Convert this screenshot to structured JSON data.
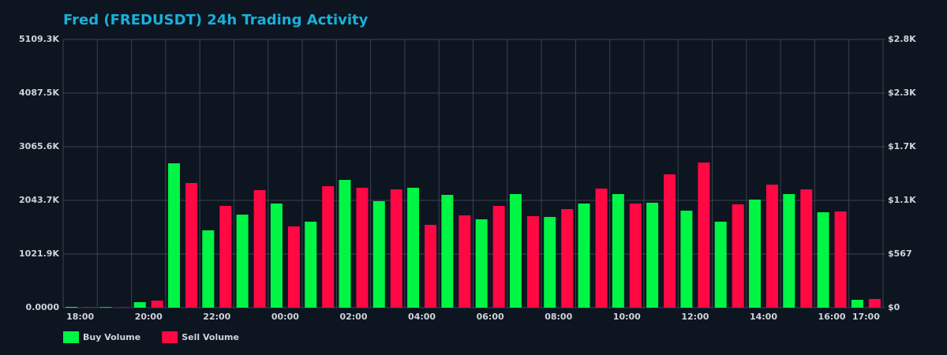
{
  "chart_data": {
    "type": "bar",
    "title": "Fred (FREDUSDT) 24h Trading Activity",
    "categories": [
      "18:00",
      null,
      "20:00",
      null,
      "22:00",
      null,
      "00:00",
      null,
      "02:00",
      null,
      "04:00",
      null,
      "06:00",
      null,
      "08:00",
      null,
      "10:00",
      null,
      "12:00",
      null,
      "14:00",
      null,
      "16:00",
      "17:00"
    ],
    "series": [
      {
        "name": "Buy Volume",
        "color": "#00f545",
        "values": [
          15000,
          12000,
          105000,
          2750000,
          1473000,
          1773000,
          1984000,
          1638000,
          2434000,
          2029000,
          2284000,
          2149000,
          1683000,
          2164000,
          1728000,
          1984000,
          2164000,
          1999000,
          1848000,
          1638000,
          2059000,
          2164000,
          1818000,
          150000
        ]
      },
      {
        "name": "Sell Volume",
        "color": "#ff0844",
        "values": [
          10000,
          8000,
          135000,
          2374000,
          1938000,
          2239000,
          1548000,
          2314000,
          2284000,
          2254000,
          1578000,
          1758000,
          1938000,
          1743000,
          1878000,
          2269000,
          1984000,
          2540000,
          2765000,
          1969000,
          2344000,
          2254000,
          1833000,
          165000
        ]
      }
    ],
    "ylim": [
      0,
      5109325
    ],
    "yticks": [
      {
        "value": 0,
        "label": "0.0000"
      },
      {
        "value": 1021865,
        "label": "1021.9K"
      },
      {
        "value": 2043730,
        "label": "2043.7K"
      },
      {
        "value": 3065595,
        "label": "3065.6K"
      },
      {
        "value": 4087460,
        "label": "4087.5K"
      },
      {
        "value": 5109325,
        "label": "5109.3K"
      }
    ],
    "y2lim": [
      0,
      2837
    ],
    "y2ticks": [
      {
        "value": 0,
        "label": "$0"
      },
      {
        "value": 567.4,
        "label": "$567"
      },
      {
        "value": 1134.8,
        "label": "$1.1K"
      },
      {
        "value": 1702.2,
        "label": "$1.7K"
      },
      {
        "value": 2269.6,
        "label": "$2.3K"
      },
      {
        "value": 2837,
        "label": "$2.8K"
      }
    ],
    "grid": true,
    "legend": "bottom-left"
  }
}
